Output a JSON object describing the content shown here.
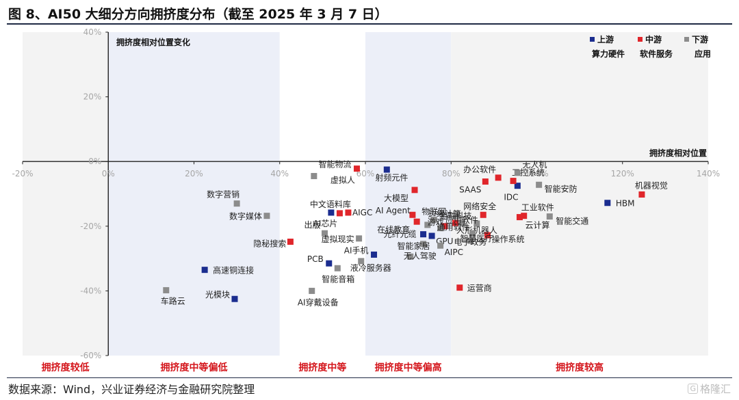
{
  "figure": {
    "title": "图 8、AI50 大细分方向拥挤度分布（截至 2025 年 3 月 7 日）",
    "source": "数据来源：Wind，兴业证券经济与金融研究院整理",
    "watermark": "格隆汇",
    "watermark_glyph": "G"
  },
  "chart_data": {
    "type": "scatter",
    "xlabel": "拥挤度相对位置",
    "ylabel": "拥挤度相对位置变化",
    "xlim": [
      -20,
      140
    ],
    "ylim": [
      -60,
      40
    ],
    "x_ticks": [
      "-20%",
      "0%",
      "20%",
      "40%",
      "60%",
      "80%",
      "100%",
      "120%",
      "140%"
    ],
    "x_tick_values": [
      -20,
      0,
      20,
      40,
      60,
      80,
      100,
      120,
      140
    ],
    "y_ticks": [
      "40%",
      "20%",
      "0%",
      "-20%",
      "-40%",
      "-60%"
    ],
    "y_tick_values": [
      40,
      20,
      0,
      -20,
      -40,
      -60
    ],
    "grid": false,
    "legend_position": "top-right",
    "legend": [
      {
        "name": "上游",
        "caption": "算力硬件",
        "color": "#1b2d8f"
      },
      {
        "name": "中游",
        "caption": "软件服务",
        "color": "#e0262b"
      },
      {
        "name": "下游",
        "caption": "应用",
        "color": "#8c8c8c"
      }
    ],
    "bands": [
      {
        "label": "拥挤度较低",
        "from": -20,
        "to": 0,
        "shade": "#f3f3f3"
      },
      {
        "label": "拥挤度中等偏低",
        "from": 0,
        "to": 40,
        "shade": "#eceff8"
      },
      {
        "label": "拥挤度中等",
        "from": 40,
        "to": 60,
        "shade": "#ffffff"
      },
      {
        "label": "拥挤度中等偏高",
        "from": 60,
        "to": 80,
        "shade": "#eceff8"
      },
      {
        "label": "拥挤度较高",
        "from": 80,
        "to": 140,
        "shade": "#f3f3f3"
      }
    ],
    "series": [
      {
        "name": "上游",
        "color": "#1b2d8f",
        "points": [
          {
            "label": "射频元件",
            "x": 65,
            "y": -2.5
          },
          {
            "label": "IDC",
            "x": 95.5,
            "y": -7.5
          },
          {
            "label": "HBM",
            "x": 116.5,
            "y": -12.8
          },
          {
            "label": "中文语料库",
            "x": 52,
            "y": -15.8
          },
          {
            "label": "光纤光缆",
            "x": 73.5,
            "y": -22.5
          },
          {
            "label": "GPU",
            "x": 75.5,
            "y": -23
          },
          {
            "label": "AI手机",
            "x": 62,
            "y": -28.8
          },
          {
            "label": "PCB",
            "x": 51.5,
            "y": -31.5
          },
          {
            "label": "高速铜连接",
            "x": 22.5,
            "y": -33.5
          },
          {
            "label": "光模块",
            "x": 29.5,
            "y": -42.5
          }
        ]
      },
      {
        "name": "中游",
        "color": "#e0262b",
        "points": [
          {
            "label": "智能物流",
            "x": 58,
            "y": -2.2
          },
          {
            "label": "办公软件",
            "x": 91,
            "y": -5
          },
          {
            "label": "SAAS",
            "x": 88,
            "y": -6.2
          },
          {
            "label": "工控系统",
            "x": 94.5,
            "y": -6
          },
          {
            "label": "大模型",
            "x": 71.5,
            "y": -8.8
          },
          {
            "label": "机器视觉",
            "x": 124.5,
            "y": -10.2
          },
          {
            "label": "AIGC",
            "x": 56,
            "y": -15.8
          },
          {
            "label": "AI芯片",
            "x": 54,
            "y": -16
          },
          {
            "label": "AI Agent",
            "x": 71,
            "y": -16.5
          },
          {
            "label": "网络安全",
            "x": 87.5,
            "y": -16.5
          },
          {
            "label": "工业软件",
            "x": 97,
            "y": -16.8
          },
          {
            "label": "云计算",
            "x": 96,
            "y": -17.2
          },
          {
            "label": "在线教育",
            "x": 72,
            "y": -18.6
          },
          {
            "label": "金融科技",
            "x": 81,
            "y": -19
          },
          {
            "label": "边缘计算",
            "x": 78.5,
            "y": -20
          },
          {
            "label": "操作系统",
            "x": 88.5,
            "y": -22.8
          },
          {
            "label": "隐秘搜索",
            "x": 42.5,
            "y": -24.8
          },
          {
            "label": "运营商",
            "x": 82,
            "y": -39
          }
        ]
      },
      {
        "name": "下游",
        "color": "#8c8c8c",
        "points": [
          {
            "label": "虚拟人",
            "x": 48,
            "y": -4.5
          },
          {
            "label": "无人机",
            "x": 95.5,
            "y": -3.5
          },
          {
            "label": "智能安防",
            "x": 100.5,
            "y": -7.2
          },
          {
            "label": "数字营销",
            "x": 30,
            "y": -13
          },
          {
            "label": "数字媒体",
            "x": 37,
            "y": -16.8
          },
          {
            "label": "智能交通",
            "x": 103,
            "y": -17
          },
          {
            "label": "物联网",
            "x": 76,
            "y": -18
          },
          {
            "label": "游戏",
            "x": 74.5,
            "y": -19.6
          },
          {
            "label": "人形机器人",
            "x": 86,
            "y": -19.2
          },
          {
            "label": "应用软件",
            "x": 82.5,
            "y": -19
          },
          {
            "label": "通用软件",
            "x": 77.5,
            "y": -20.6
          },
          {
            "label": "出版",
            "x": 50.5,
            "y": -22.2
          },
          {
            "label": "虚拟现实",
            "x": 58.5,
            "y": -23.8
          },
          {
            "label": "电子政务",
            "x": 84.5,
            "y": -24.5
          },
          {
            "label": "智能家居",
            "x": 73.5,
            "y": -25.5
          },
          {
            "label": "AIPC",
            "x": 77.5,
            "y": -26
          },
          {
            "label": "智慧医疗",
            "x": 85,
            "y": -22.2
          },
          {
            "label": "无人驾驶",
            "x": 70.5,
            "y": -29.4
          },
          {
            "label": "液冷服务器",
            "x": 59,
            "y": -30.8
          },
          {
            "label": "智能音箱",
            "x": 53.5,
            "y": -33
          },
          {
            "label": "车路云",
            "x": 13.5,
            "y": -39.8
          },
          {
            "label": "AI穿戴设备",
            "x": 47.5,
            "y": -40
          }
        ]
      }
    ]
  }
}
